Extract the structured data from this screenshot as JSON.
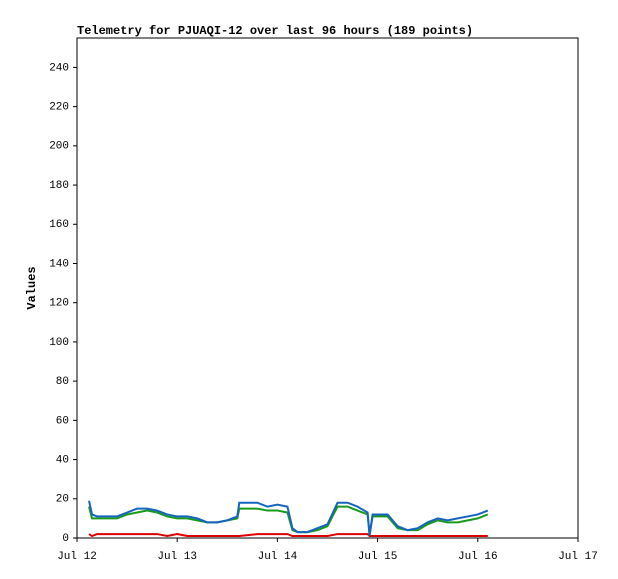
{
  "chart_data": {
    "type": "line",
    "title": "Telemetry for PJUAQI-12 over last 96 hours (189 points)",
    "y_label": "Values",
    "x": [
      12.12,
      12.15,
      12.2,
      12.3,
      12.4,
      12.5,
      12.6,
      12.7,
      12.8,
      12.9,
      13.0,
      13.1,
      13.2,
      13.3,
      13.4,
      13.5,
      13.6,
      13.62,
      13.8,
      13.9,
      14.0,
      14.1,
      14.15,
      14.2,
      14.3,
      14.4,
      14.5,
      14.6,
      14.7,
      14.8,
      14.9,
      14.92,
      14.95,
      15.1,
      15.2,
      15.3,
      15.4,
      15.5,
      15.6,
      15.7,
      15.8,
      15.9,
      16.0,
      16.1
    ],
    "series": [
      {
        "color": "#dd0000",
        "values": [
          2,
          1,
          2,
          2,
          2,
          2,
          2,
          2,
          2,
          1,
          2,
          1,
          1,
          1,
          1,
          1,
          1,
          1,
          2,
          2,
          2,
          2,
          1,
          1,
          1,
          1,
          1,
          2,
          2,
          2,
          2,
          1,
          1,
          1,
          1,
          1,
          1,
          1,
          1,
          1,
          1,
          1,
          1,
          1
        ]
      },
      {
        "color": "#1a9a1a",
        "values": [
          16,
          10,
          10,
          10,
          10,
          12,
          13,
          14,
          13,
          11,
          10,
          10,
          9,
          8,
          8,
          9,
          10,
          15,
          15,
          14,
          14,
          13,
          4,
          3,
          3,
          4,
          6,
          16,
          16,
          14,
          12,
          2,
          11,
          11,
          5,
          4,
          4,
          7,
          9,
          8,
          8,
          9,
          10,
          12
        ]
      },
      {
        "color": "#1565c0",
        "values": [
          19,
          12,
          11,
          11,
          11,
          13,
          15,
          15,
          14,
          12,
          11,
          11,
          10,
          8,
          8,
          9,
          11,
          18,
          18,
          16,
          17,
          16,
          5,
          3,
          3,
          5,
          7,
          18,
          18,
          16,
          13,
          1,
          12,
          12,
          6,
          4,
          5,
          8,
          10,
          9,
          10,
          11,
          12,
          14
        ]
      }
    ],
    "xlim": [
      12,
      17
    ],
    "xticks": [
      {
        "value": 12,
        "label": "Jul 12"
      },
      {
        "value": 13,
        "label": "Jul 13"
      },
      {
        "value": 14,
        "label": "Jul 14"
      },
      {
        "value": 15,
        "label": "Jul 15"
      },
      {
        "value": 16,
        "label": "Jul 16"
      },
      {
        "value": 17,
        "label": "Jul 17"
      }
    ],
    "ylim": [
      0,
      255
    ],
    "yticks": [
      0,
      20,
      40,
      60,
      80,
      100,
      120,
      140,
      160,
      180,
      200,
      220,
      240
    ],
    "grid": false
  }
}
